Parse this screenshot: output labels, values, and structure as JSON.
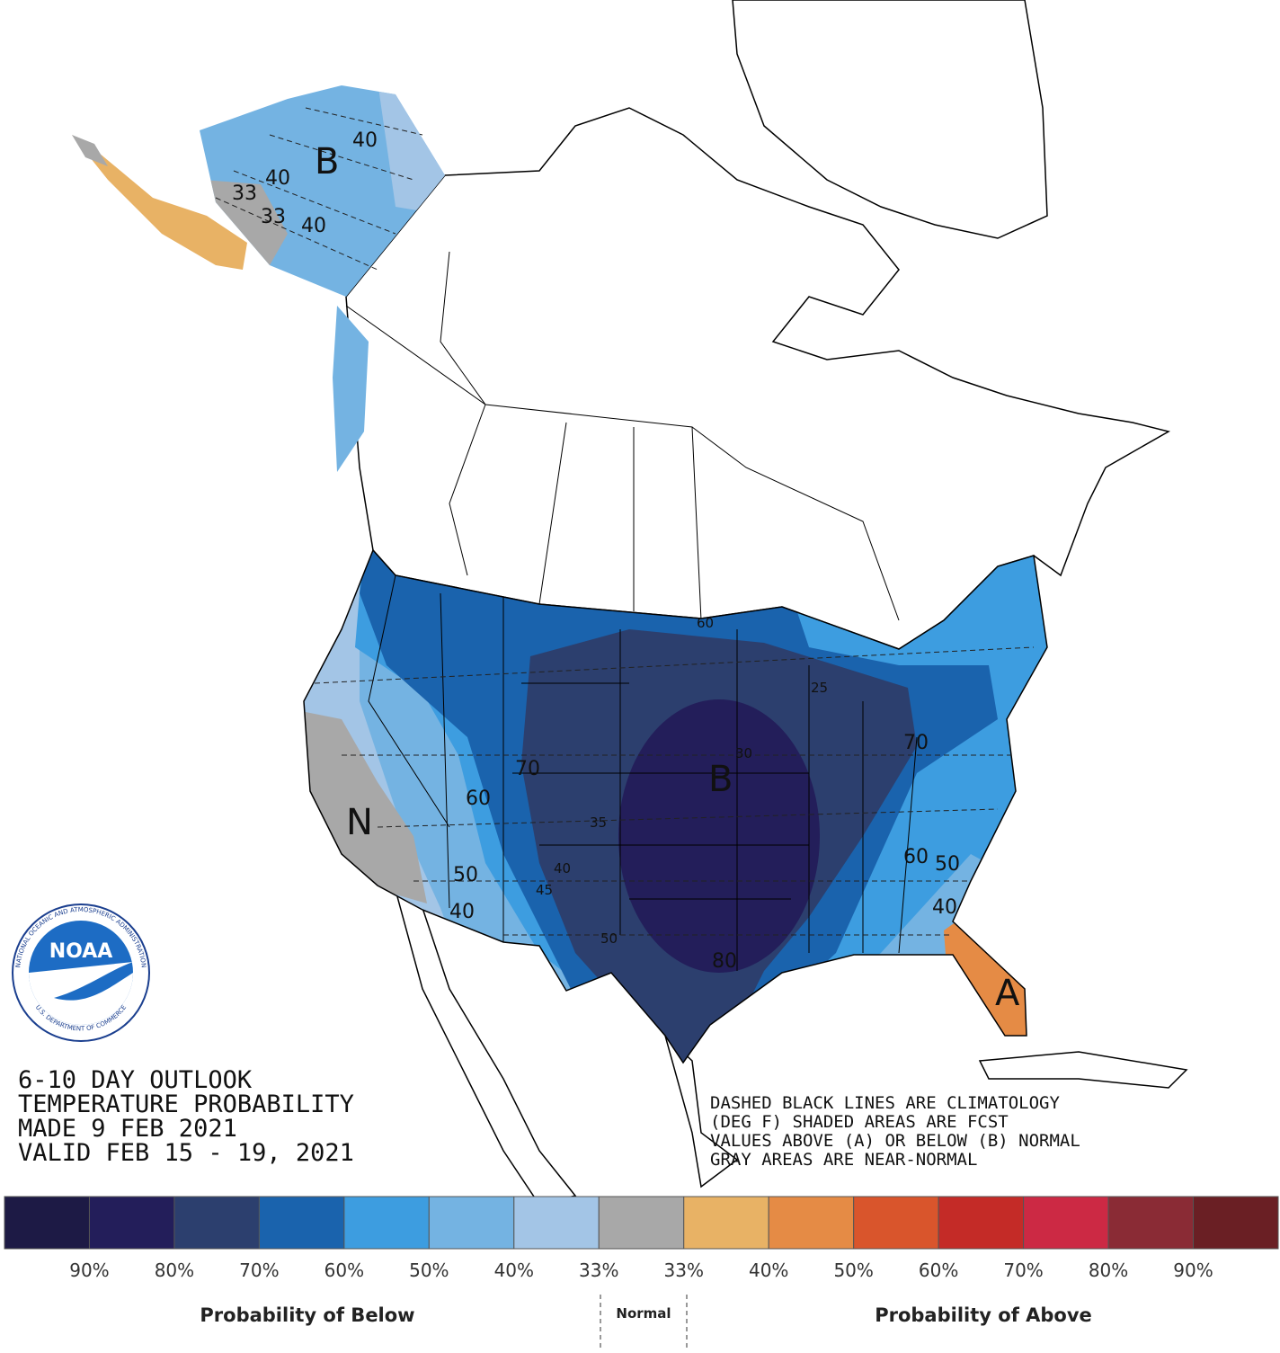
{
  "map": {
    "labels": [
      "B",
      "40",
      "40",
      "33",
      "40",
      "33",
      "60",
      "25",
      "70",
      "60",
      "50",
      "40",
      "35",
      "40",
      "45",
      "50",
      "B",
      "30",
      "80",
      "70",
      "60",
      "50",
      "40",
      "A",
      "N"
    ]
  },
  "outlook": {
    "lines": [
      "6-10 DAY OUTLOOK",
      "TEMPERATURE PROBABILITY",
      "MADE  9 FEB 2021",
      "VALID  FEB 15 - 19, 2021"
    ]
  },
  "notes": {
    "lines": [
      "DASHED BLACK LINES ARE CLIMATOLOGY",
      "(DEG F) SHADED AREAS ARE FCST",
      "VALUES ABOVE (A) OR BELOW (B) NORMAL",
      "GRAY AREAS ARE NEAR-NORMAL"
    ]
  },
  "logo": {
    "name": "NOAA",
    "ring_top": "NATIONAL OCEANIC AND ATMOSPHERIC ADMINISTRATION",
    "ring_bottom": "U.S. DEPARTMENT OF COMMERCE"
  },
  "legend": {
    "colors": [
      "#1d1a45",
      "#231e5a",
      "#2c3f6e",
      "#1a63ad",
      "#3d9de0",
      "#74b3e2",
      "#a3c5e6",
      "#a8a8a8",
      "#e8b265",
      "#e58b45",
      "#d9552c",
      "#c42b27",
      "#cc2944",
      "#8a2b35",
      "#6a1f24"
    ],
    "labels": [
      "90%",
      "80%",
      "70%",
      "60%",
      "50%",
      "40%",
      "33%",
      "33%",
      "40%",
      "50%",
      "60%",
      "70%",
      "80%",
      "90%"
    ],
    "below": "Probability of Below",
    "normal": "Normal",
    "above": "Probability of Above"
  }
}
